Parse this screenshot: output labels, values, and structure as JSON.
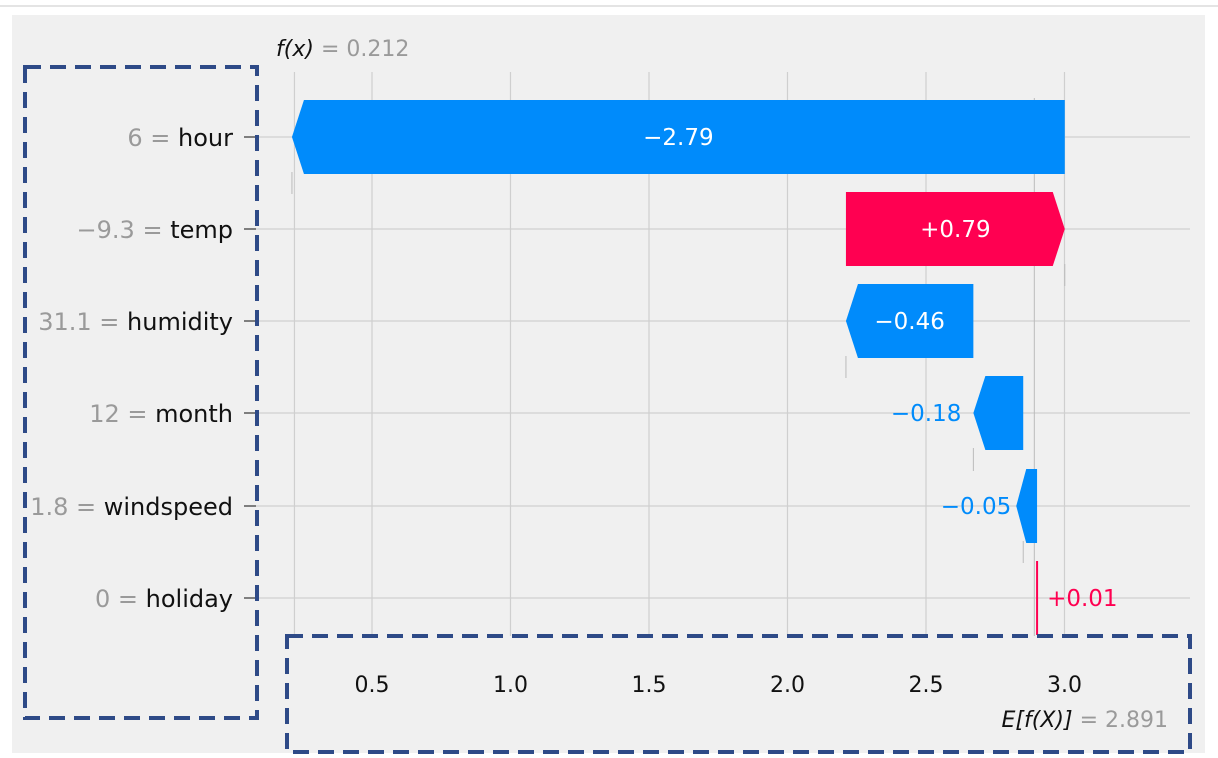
{
  "chart_data": {
    "type": "waterfall",
    "colors": {
      "positive": "#ff0051",
      "negative": "#008bfb",
      "grid": "#cfcfcf",
      "muted": "#9a9a9a"
    },
    "fx": {
      "label": "f(x)",
      "value": "0.212"
    },
    "expected": {
      "label": "E[f(X)]",
      "value": "2.891"
    },
    "xlim": [
      0.22,
      3.46
    ],
    "xticks": [
      "0.5",
      "1.0",
      "1.5",
      "2.0",
      "2.5",
      "3.0"
    ],
    "features": [
      {
        "value": "6",
        "name": "hour",
        "shap": -2.79,
        "label": "−2.79"
      },
      {
        "value": "−9.3",
        "name": "temp",
        "shap": 0.79,
        "label": "+0.79"
      },
      {
        "value": "31.1",
        "name": "humidity",
        "shap": -0.46,
        "label": "−0.46"
      },
      {
        "value": "12",
        "name": "month",
        "shap": -0.18,
        "label": "−0.18"
      },
      {
        "value": "1.8",
        "name": "windspeed",
        "shap": -0.05,
        "label": "−0.05"
      },
      {
        "value": "0",
        "name": "holiday",
        "shap": 0.01,
        "label": "+0.01"
      }
    ]
  }
}
